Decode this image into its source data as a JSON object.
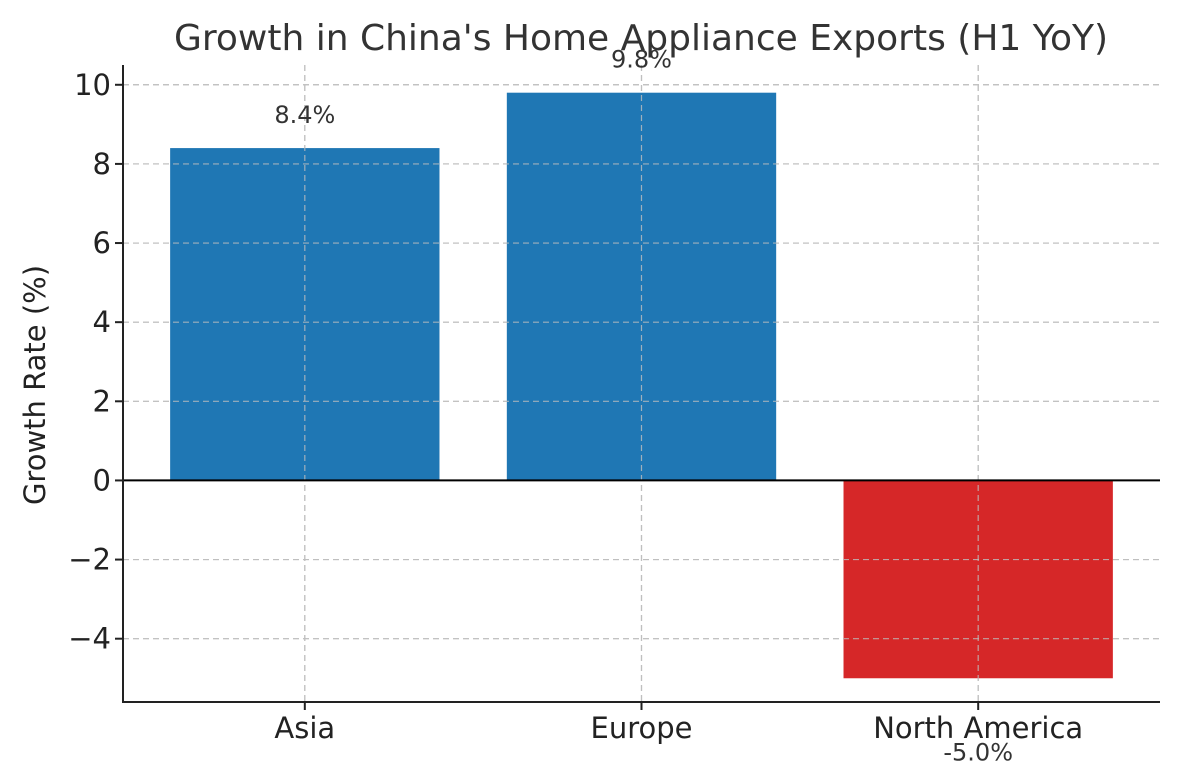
{
  "chart_data": {
    "type": "bar",
    "title": "Growth in China's Home Appliance Exports (H1 YoY)",
    "xlabel": "",
    "ylabel": "Growth Rate (%)",
    "categories": [
      "Asia",
      "Europe",
      "North America"
    ],
    "values": [
      8.4,
      9.8,
      -5.0
    ],
    "value_labels": [
      "8.4%",
      "9.8%",
      "-5.0%"
    ],
    "bar_colors": [
      "#1f77b4",
      "#1f77b4",
      "#d62728"
    ],
    "ylim": [
      -5.6,
      10.5
    ],
    "yticks": [
      -4,
      -2,
      0,
      2,
      4,
      6,
      8,
      10
    ],
    "ytick_labels": [
      "−4",
      "−2",
      "0",
      "2",
      "4",
      "6",
      "8",
      "10"
    ],
    "grid": true
  }
}
